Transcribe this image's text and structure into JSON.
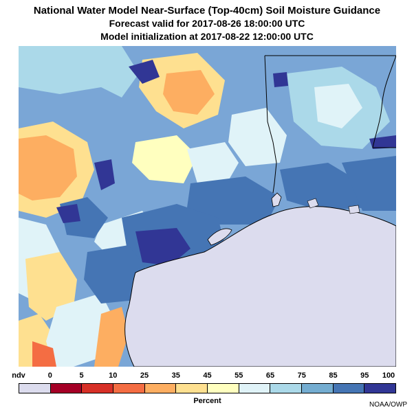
{
  "title": {
    "main": "National Water Model Near-Surface (Top-40cm) Soil Moisture Guidance",
    "forecast": "Forecast valid for 2017-08-26 18:00:00 UTC",
    "init": "Model initialization at 2017-08-22 12:00:00 UTC"
  },
  "legend": {
    "tick_labels": [
      "ndv",
      "0",
      "5",
      "10",
      "25",
      "35",
      "45",
      "55",
      "65",
      "75",
      "85",
      "95",
      "100"
    ],
    "swatches": [
      {
        "label": "ndv",
        "color": "#dcdcee"
      },
      {
        "label": "0-5",
        "color": "#a50026"
      },
      {
        "label": "5-10",
        "color": "#d73027"
      },
      {
        "label": "10-25",
        "color": "#f46d43"
      },
      {
        "label": "25-35",
        "color": "#fdae61"
      },
      {
        "label": "35-45",
        "color": "#fee090"
      },
      {
        "label": "45-55",
        "color": "#ffffbf"
      },
      {
        "label": "55-65",
        "color": "#e0f3f8"
      },
      {
        "label": "65-75",
        "color": "#abd9e9"
      },
      {
        "label": "75-85",
        "color": "#74add1"
      },
      {
        "label": "85-95",
        "color": "#4575b4"
      },
      {
        "label": "95-100",
        "color": "#313695"
      }
    ],
    "unit_label": "Percent"
  },
  "credit": "NOAA/OWP",
  "map": {
    "water_color": "#dcdcee",
    "border_color": "#000000"
  }
}
